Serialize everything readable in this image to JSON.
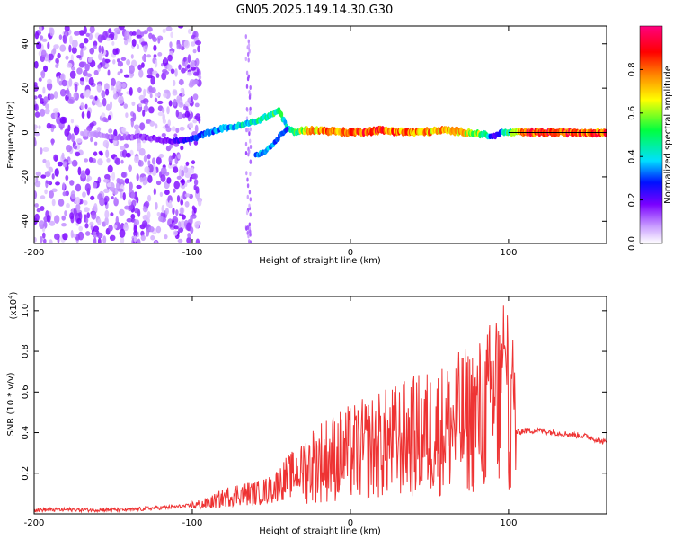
{
  "figure_title": "GN05.2025.149.14.30.G30",
  "chart_data": [
    {
      "type": "heatmap",
      "xlabel": "Height of straight line (km)",
      "ylabel": "Frequency (Hz)",
      "colorbar_label": "Normalized spectral amplitude",
      "xlim": [
        -200,
        162
      ],
      "ylim": [
        -50,
        48
      ],
      "xticks": [
        -200,
        -100,
        0,
        100
      ],
      "yticks": [
        -40,
        -20,
        0,
        20,
        40
      ],
      "colorbar_ticks": [
        0.0,
        0.2,
        0.4,
        0.6,
        0.8
      ],
      "colorbar_range": [
        0,
        1
      ],
      "colormap": [
        "#ffffff",
        "#c89bff",
        "#7a00ff",
        "#0010ff",
        "#00e0ff",
        "#00ff40",
        "#ffff00",
        "#ff8000",
        "#ff0000",
        "#ff0080"
      ],
      "ridge": {
        "x": [
          -170,
          -150,
          -130,
          -115,
          -100,
          -90,
          -80,
          -70,
          -60,
          -50,
          -45,
          -40,
          -35,
          -30,
          -20,
          0,
          20,
          40,
          60,
          75,
          85,
          90,
          95,
          110,
          130,
          150,
          162
        ],
        "freq": [
          0,
          -2,
          -2,
          -4,
          -3,
          0,
          2,
          3,
          5,
          8,
          10,
          2,
          0,
          1,
          1,
          0,
          1,
          0,
          1,
          0,
          -1,
          -2,
          0,
          0,
          0,
          0,
          0
        ],
        "amplitude": [
          0.1,
          0.15,
          0.2,
          0.25,
          0.35,
          0.4,
          0.45,
          0.5,
          0.55,
          0.55,
          0.6,
          0.5,
          0.6,
          0.7,
          0.85,
          0.9,
          0.9,
          0.85,
          0.8,
          0.75,
          0.6,
          0.3,
          0.4,
          0.95,
          0.95,
          0.9,
          0.9
        ]
      },
      "branch": {
        "x": [
          -60,
          -55,
          -50,
          -45,
          -40
        ],
        "freq": [
          -10,
          -9,
          -6,
          -2,
          2
        ],
        "amplitude": [
          0.4,
          0.45,
          0.4,
          0.4,
          0.35
        ]
      }
    },
    {
      "type": "line",
      "xlabel": "Height of straight line (km)",
      "ylabel": "SNR (10 * v/v)",
      "y_multiplier_label": "(x10",
      "y_multiplier_exp": "4",
      "y_multiplier_close": ")",
      "xlim": [
        -200,
        162
      ],
      "ylim": [
        0,
        1.07
      ],
      "xticks": [
        -200,
        -100,
        0,
        100
      ],
      "yticks": [
        0.2,
        0.4,
        0.6,
        0.8,
        1.0
      ],
      "color": "#ee3333",
      "series": [
        {
          "x": [
            -200,
            -180,
            -160,
            -140,
            -120,
            -100,
            -90,
            -80,
            -70,
            -60,
            -50,
            -40,
            -30,
            -20,
            -10,
            0,
            10,
            20,
            30,
            40,
            50,
            60,
            70,
            80,
            85,
            90,
            95,
            98,
            100,
            103,
            105,
            110,
            120,
            130,
            140,
            150,
            162
          ],
          "y": [
            0.02,
            0.02,
            0.02,
            0.02,
            0.03,
            0.04,
            0.05,
            0.08,
            0.1,
            0.1,
            0.12,
            0.18,
            0.22,
            0.26,
            0.28,
            0.3,
            0.32,
            0.34,
            0.36,
            0.38,
            0.4,
            0.42,
            0.45,
            0.48,
            0.5,
            0.55,
            0.55,
            0.6,
            0.5,
            0.55,
            0.4,
            0.41,
            0.41,
            0.4,
            0.39,
            0.38,
            0.35
          ]
        }
      ]
    }
  ]
}
